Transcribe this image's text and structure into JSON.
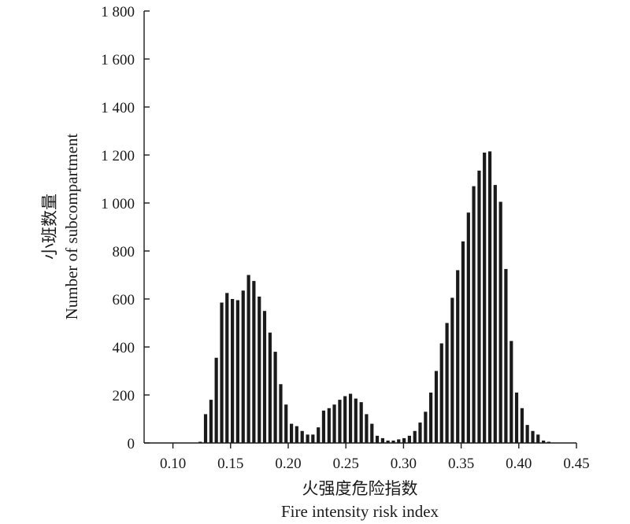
{
  "chart_data": {
    "type": "bar",
    "title": "",
    "xlabel_cn": "火强度危险指数",
    "xlabel_en": "Fire intensity risk index",
    "ylabel_cn": "小班数量",
    "ylabel_en": "Number of subcompartment",
    "xlim": [
      0.075,
      0.45
    ],
    "ylim": [
      0,
      1800
    ],
    "x_ticks": [
      0.1,
      0.15,
      0.2,
      0.25,
      0.3,
      0.35,
      0.4,
      0.45
    ],
    "x_tick_labels": [
      "0.10",
      "0.15",
      "0.20",
      "0.25",
      "0.30",
      "0.35",
      "0.40",
      "0.45"
    ],
    "y_ticks": [
      0,
      200,
      400,
      600,
      800,
      1000,
      1200,
      1400,
      1600,
      1800
    ],
    "y_tick_labels": [
      "0",
      "200",
      "400",
      "600",
      "800",
      "1 000",
      "1 200",
      "1 400",
      "1 600",
      "1 800"
    ],
    "grid": false,
    "legend": "none",
    "bar_color": "#1a1a1a",
    "x": [
      0.1237,
      0.1283,
      0.133,
      0.1376,
      0.1423,
      0.1469,
      0.1516,
      0.1562,
      0.1609,
      0.1656,
      0.1702,
      0.1749,
      0.1795,
      0.1842,
      0.1888,
      0.1935,
      0.1981,
      0.2028,
      0.2074,
      0.2121,
      0.2168,
      0.2214,
      0.2261,
      0.2307,
      0.2354,
      0.24,
      0.2447,
      0.2493,
      0.254,
      0.2586,
      0.2633,
      0.2679,
      0.2726,
      0.2772,
      0.2819,
      0.2865,
      0.2912,
      0.2958,
      0.3005,
      0.3051,
      0.3098,
      0.3144,
      0.3191,
      0.3237,
      0.3284,
      0.333,
      0.3377,
      0.3423,
      0.347,
      0.3516,
      0.3563,
      0.3609,
      0.3656,
      0.3702,
      0.3749,
      0.3795,
      0.3842,
      0.3888,
      0.3935,
      0.3981,
      0.4028,
      0.4074,
      0.4121,
      0.4167,
      0.4214,
      0.426
    ],
    "values": [
      5,
      120,
      180,
      355,
      585,
      625,
      600,
      595,
      635,
      700,
      675,
      610,
      550,
      460,
      380,
      245,
      160,
      80,
      70,
      50,
      35,
      35,
      65,
      135,
      145,
      160,
      180,
      195,
      205,
      185,
      170,
      120,
      80,
      30,
      20,
      10,
      10,
      15,
      20,
      30,
      50,
      85,
      130,
      210,
      300,
      415,
      500,
      605,
      720,
      840,
      960,
      1070,
      1135,
      1210,
      1215,
      1075,
      1005,
      725,
      425,
      210,
      145,
      75,
      50,
      35,
      10,
      5
    ]
  }
}
